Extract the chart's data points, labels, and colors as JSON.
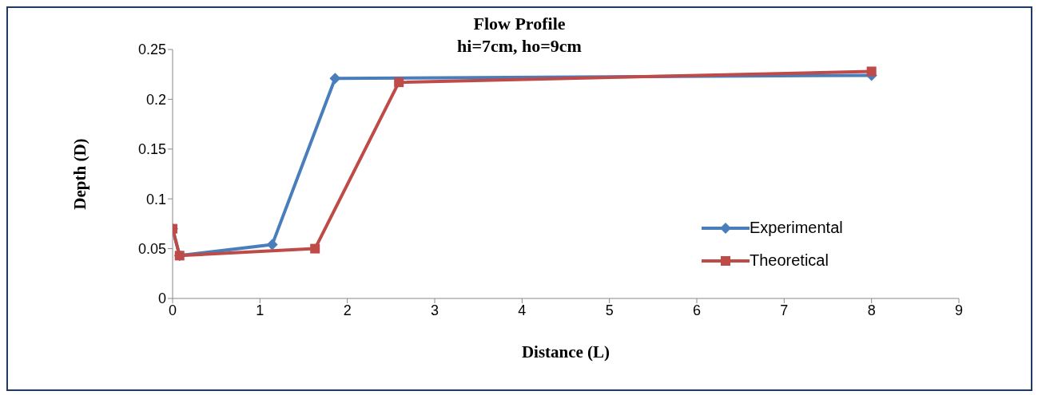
{
  "chart_data": {
    "type": "line",
    "title": "Flow Profile",
    "subtitle": "hi=7cm, ho=9cm",
    "xlabel": "Distance (L)",
    "ylabel": "Depth (D)",
    "series": [
      {
        "name": "Experimental",
        "color": "#4a7ebb",
        "marker": "diamond",
        "x": [
          0,
          0.08,
          1.14,
          1.86,
          8
        ],
        "values": [
          0.07,
          0.043,
          0.054,
          0.221,
          0.224
        ]
      },
      {
        "name": "Theoretical",
        "color": "#be4b48",
        "marker": "square",
        "x": [
          0,
          0.08,
          1.63,
          2.59,
          8
        ],
        "values": [
          0.07,
          0.043,
          0.05,
          0.217,
          0.228
        ]
      }
    ],
    "xlim": [
      0,
      9
    ],
    "xticks": [
      0,
      1,
      2,
      3,
      4,
      5,
      6,
      7,
      8,
      9
    ],
    "ylim": [
      0,
      0.25
    ],
    "yticks": [
      0,
      0.05,
      0.1,
      0.15,
      0.2,
      0.25
    ],
    "grid": false,
    "legend": "right",
    "line_style": "solid"
  }
}
